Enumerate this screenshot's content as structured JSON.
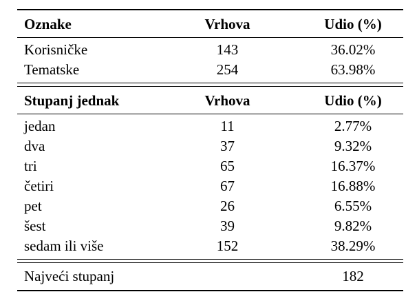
{
  "page": {
    "background": "#ffffff",
    "text_color": "#000000",
    "rule_color": "#000000"
  },
  "table": {
    "sections": [
      {
        "id": "oznake",
        "columns": [
          "Oznake",
          "Vrhova",
          "Udio (%)"
        ],
        "rows": [
          {
            "label": "Korisničke",
            "vrhova": "143",
            "udio": "36.02%"
          },
          {
            "label": "Tematske",
            "vrhova": "254",
            "udio": "63.98%"
          }
        ]
      },
      {
        "id": "stupanj-jednak",
        "columns": [
          "Stupanj jednak",
          "Vrhova",
          "Udio (%)"
        ],
        "rows": [
          {
            "label": "jedan",
            "vrhova": "11",
            "udio": "2.77%"
          },
          {
            "label": "dva",
            "vrhova": "37",
            "udio": "9.32%"
          },
          {
            "label": "tri",
            "vrhova": "65",
            "udio": "16.37%"
          },
          {
            "label": "četiri",
            "vrhova": "67",
            "udio": "16.88%"
          },
          {
            "label": "pet",
            "vrhova": "26",
            "udio": "6.55%"
          },
          {
            "label": "šest",
            "vrhova": "39",
            "udio": "9.82%"
          },
          {
            "label": "sedam ili više",
            "vrhova": "152",
            "udio": "38.29%"
          }
        ]
      }
    ],
    "footer": {
      "label": "Najveći stupanj",
      "value": "182"
    }
  }
}
